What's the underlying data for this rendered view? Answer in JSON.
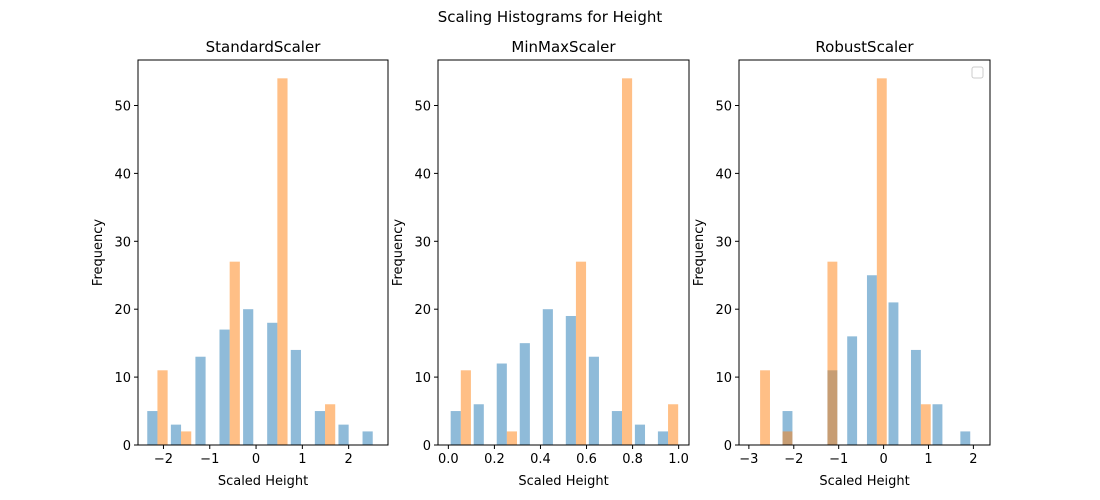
{
  "figure": {
    "suptitle": "Scaling Histograms for Height"
  },
  "chart_data": [
    {
      "type": "bar",
      "title": "StandardScaler",
      "xlabel": "Scaled Height",
      "ylabel": "Frequency",
      "xlim": [
        -2.55,
        2.85
      ],
      "ylim": [
        0,
        56.7
      ],
      "xticks": [
        -2,
        -1,
        0,
        1,
        2
      ],
      "xtick_labels": [
        "−2",
        "−1",
        "0",
        "1",
        "2"
      ],
      "yticks": [
        0,
        10,
        20,
        30,
        40,
        50
      ],
      "ytick_labels": [
        "0",
        "10",
        "20",
        "30",
        "40",
        "50"
      ],
      "legend": false,
      "series": [
        {
          "color": "#1f77b4",
          "opacity": 0.5,
          "bins": [
            {
              "x0": -2.35,
              "x1": -2.13,
              "value": 5
            },
            {
              "x0": -1.84,
              "x1": -1.62,
              "value": 3
            },
            {
              "x0": -1.31,
              "x1": -1.09,
              "value": 13
            },
            {
              "x0": -0.79,
              "x1": -0.57,
              "value": 17
            },
            {
              "x0": -0.28,
              "x1": -0.06,
              "value": 20
            },
            {
              "x0": 0.24,
              "x1": 0.46,
              "value": 18
            },
            {
              "x0": 0.75,
              "x1": 0.97,
              "value": 14
            },
            {
              "x0": 1.27,
              "x1": 1.49,
              "value": 5
            },
            {
              "x0": 1.78,
              "x1": 2.0,
              "value": 3
            },
            {
              "x0": 2.3,
              "x1": 2.52,
              "value": 2
            }
          ]
        },
        {
          "color": "#ff7f0e",
          "opacity": 0.5,
          "bins": [
            {
              "x0": -2.13,
              "x1": -1.91,
              "value": 11
            },
            {
              "x0": -1.62,
              "x1": -1.4,
              "value": 2
            },
            {
              "x0": -0.57,
              "x1": -0.35,
              "value": 27
            },
            {
              "x0": 0.46,
              "x1": 0.68,
              "value": 54
            },
            {
              "x0": 1.49,
              "x1": 1.71,
              "value": 6
            }
          ]
        }
      ]
    },
    {
      "type": "bar",
      "title": "MinMaxScaler",
      "xlabel": "Scaled Height",
      "ylabel": "Frequency",
      "xlim": [
        -0.045,
        1.045
      ],
      "ylim": [
        0,
        56.7
      ],
      "xticks": [
        0.0,
        0.2,
        0.4,
        0.6,
        0.8,
        1.0
      ],
      "xtick_labels": [
        "0.0",
        "0.2",
        "0.4",
        "0.6",
        "0.8",
        "1.0"
      ],
      "yticks": [
        0,
        10,
        20,
        30,
        40,
        50
      ],
      "ytick_labels": [
        "0",
        "10",
        "20",
        "30",
        "40",
        "50"
      ],
      "legend": false,
      "series": [
        {
          "color": "#1f77b4",
          "opacity": 0.5,
          "bins": [
            {
              "x0": 0.01,
              "x1": 0.054,
              "value": 5
            },
            {
              "x0": 0.11,
              "x1": 0.154,
              "value": 6
            },
            {
              "x0": 0.21,
              "x1": 0.254,
              "value": 12
            },
            {
              "x0": 0.31,
              "x1": 0.354,
              "value": 15
            },
            {
              "x0": 0.41,
              "x1": 0.454,
              "value": 20
            },
            {
              "x0": 0.51,
              "x1": 0.554,
              "value": 19
            },
            {
              "x0": 0.61,
              "x1": 0.654,
              "value": 13
            },
            {
              "x0": 0.71,
              "x1": 0.754,
              "value": 5
            },
            {
              "x0": 0.81,
              "x1": 0.854,
              "value": 3
            },
            {
              "x0": 0.91,
              "x1": 0.954,
              "value": 2
            }
          ]
        },
        {
          "color": "#ff7f0e",
          "opacity": 0.5,
          "bins": [
            {
              "x0": 0.054,
              "x1": 0.098,
              "value": 11
            },
            {
              "x0": 0.254,
              "x1": 0.298,
              "value": 2
            },
            {
              "x0": 0.554,
              "x1": 0.598,
              "value": 27
            },
            {
              "x0": 0.754,
              "x1": 0.798,
              "value": 54
            },
            {
              "x0": 0.954,
              "x1": 0.998,
              "value": 6
            }
          ]
        }
      ]
    },
    {
      "type": "bar",
      "title": "RobustScaler",
      "xlabel": "Scaled Height",
      "ylabel": "Frequency",
      "xlim": [
        -3.22,
        2.37
      ],
      "ylim": [
        0,
        56.7
      ],
      "xticks": [
        -3,
        -2,
        -1,
        0,
        1,
        2
      ],
      "xtick_labels": [
        "−3",
        "−2",
        "−1",
        "0",
        "1",
        "2"
      ],
      "yticks": [
        0,
        10,
        20,
        30,
        40,
        50
      ],
      "ytick_labels": [
        "0",
        "10",
        "20",
        "30",
        "40",
        "50"
      ],
      "legend": true,
      "series": [
        {
          "color": "#1f77b4",
          "opacity": 0.5,
          "bins": [
            {
              "x0": -2.25,
              "x1": -2.03,
              "value": 5
            },
            {
              "x0": -1.25,
              "x1": -1.03,
              "value": 11
            },
            {
              "x0": -0.81,
              "x1": -0.59,
              "value": 16
            },
            {
              "x0": -0.37,
              "x1": -0.15,
              "value": 25
            },
            {
              "x0": 0.11,
              "x1": 0.33,
              "value": 21
            },
            {
              "x0": 0.61,
              "x1": 0.83,
              "value": 14
            },
            {
              "x0": 1.09,
              "x1": 1.31,
              "value": 6
            },
            {
              "x0": 1.71,
              "x1": 1.93,
              "value": 2
            }
          ]
        },
        {
          "color": "#ff7f0e",
          "opacity": 0.5,
          "bins": [
            {
              "x0": -2.75,
              "x1": -2.53,
              "value": 11
            },
            {
              "x0": -2.25,
              "x1": -2.03,
              "value": 2
            },
            {
              "x0": -1.25,
              "x1": -1.03,
              "value": 27
            },
            {
              "x0": -0.15,
              "x1": 0.07,
              "value": 54
            },
            {
              "x0": 0.83,
              "x1": 1.05,
              "value": 6
            }
          ]
        }
      ]
    }
  ]
}
